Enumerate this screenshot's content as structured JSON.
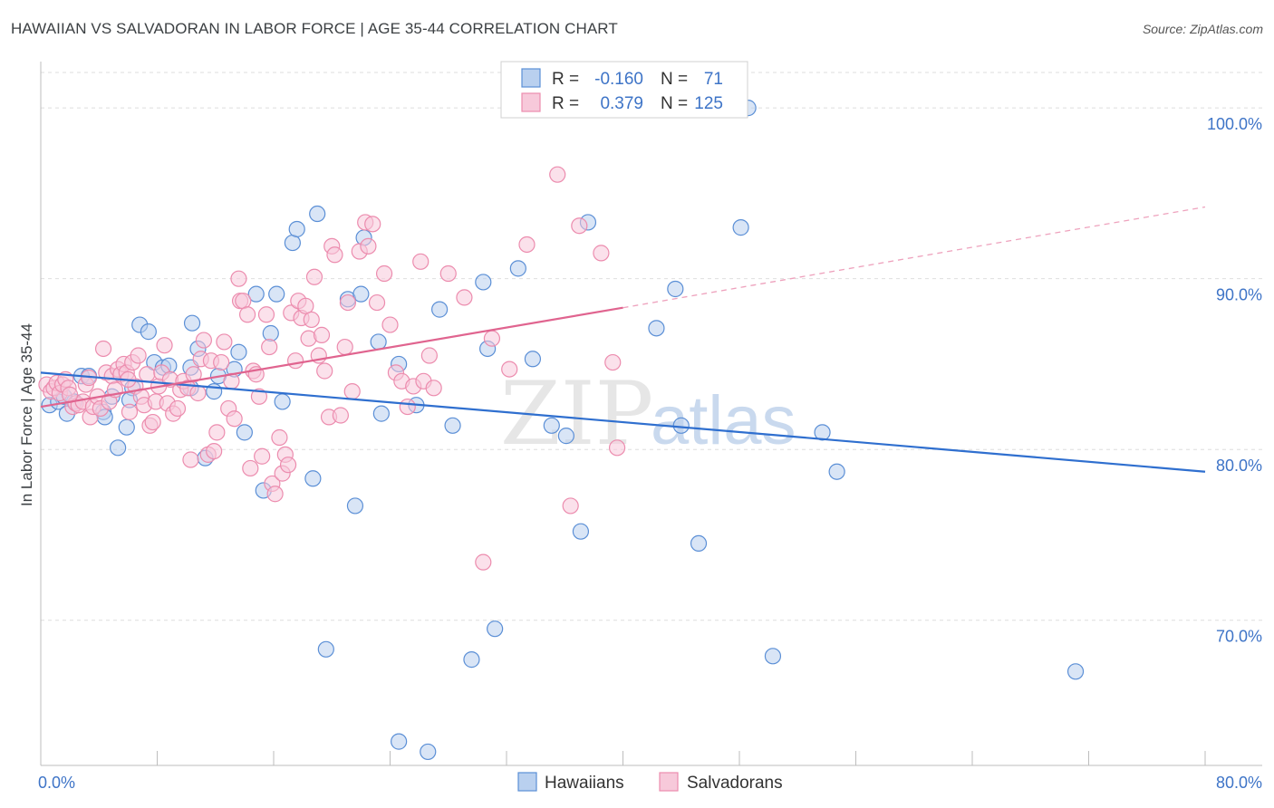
{
  "title": "HAWAIIAN VS SALVADORAN IN LABOR FORCE | AGE 35-44 CORRELATION CHART",
  "source": "Source: ZipAtlas.com",
  "watermark": {
    "part1": "ZIP",
    "part2": "atlas"
  },
  "colors": {
    "blue": "#5b8fd6",
    "blue_fill": "#b9d0ef",
    "blue_line": "#2f6fcf",
    "pink": "#ec8cae",
    "pink_fill": "#f7c9da",
    "pink_line": "#e0648f",
    "axis_text": "#3e74c7"
  },
  "chart_data": {
    "type": "scatter",
    "title": "HAWAIIAN VS SALVADORAN IN LABOR FORCE | AGE 35-44 CORRELATION CHART",
    "ylabel": "In Labor Force | Age 35-44",
    "xlabel": "",
    "xlim": [
      0,
      80
    ],
    "ylim": [
      61.5,
      102.5
    ],
    "x_tick_labels": [
      {
        "value": 0,
        "label": "0.0%"
      },
      {
        "value": 80,
        "label": "80.0%"
      }
    ],
    "y_tick_labels": [
      {
        "value": 70,
        "label": "70.0%"
      },
      {
        "value": 80,
        "label": "80.0%"
      },
      {
        "value": 90,
        "label": "90.0%"
      },
      {
        "value": 100,
        "label": "100.0%"
      }
    ],
    "legend": [
      {
        "series": "Hawaiians",
        "r_label": "R =",
        "r": "-0.160",
        "n_label": "N =",
        "n": "71"
      },
      {
        "series": "Salvadorans",
        "r_label": "R =",
        "r": "0.379",
        "n_label": "N =",
        "n": "125"
      }
    ],
    "series": [
      {
        "name": "Hawaiians",
        "color": "#5b8fd6",
        "trend": {
          "x": [
            0,
            80
          ],
          "y": [
            84.5,
            78.7
          ]
        },
        "points": [
          [
            0.6,
            82.6
          ],
          [
            1.2,
            82.8
          ],
          [
            1.8,
            82.1
          ],
          [
            2.3,
            82.8
          ],
          [
            2.8,
            84.3
          ],
          [
            3.3,
            84.3
          ],
          [
            4.3,
            82.2
          ],
          [
            4.4,
            81.9
          ],
          [
            4.9,
            83.1
          ],
          [
            5.3,
            80.1
          ],
          [
            5.9,
            81.3
          ],
          [
            6.3,
            83.6
          ],
          [
            6.8,
            87.3
          ],
          [
            7.4,
            86.9
          ],
          [
            7.8,
            85.1
          ],
          [
            8.4,
            84.8
          ],
          [
            8.8,
            84.9
          ],
          [
            10.3,
            84.8
          ],
          [
            10.3,
            83.6
          ],
          [
            10.4,
            87.4
          ],
          [
            10.8,
            85.9
          ],
          [
            11.3,
            79.5
          ],
          [
            11.9,
            83.4
          ],
          [
            12.2,
            84.3
          ],
          [
            13.3,
            84.7
          ],
          [
            13.6,
            85.7
          ],
          [
            14.0,
            81.0
          ],
          [
            14.8,
            89.1
          ],
          [
            15.3,
            77.6
          ],
          [
            15.8,
            86.8
          ],
          [
            16.2,
            89.1
          ],
          [
            16.6,
            82.8
          ],
          [
            17.3,
            92.1
          ],
          [
            17.6,
            92.9
          ],
          [
            18.7,
            78.3
          ],
          [
            19.0,
            93.8
          ],
          [
            19.6,
            68.3
          ],
          [
            21.1,
            88.8
          ],
          [
            21.6,
            76.7
          ],
          [
            22.0,
            89.1
          ],
          [
            22.2,
            92.4
          ],
          [
            23.2,
            86.3
          ],
          [
            23.4,
            82.1
          ],
          [
            24.6,
            85.0
          ],
          [
            24.6,
            62.9
          ],
          [
            25.8,
            82.6
          ],
          [
            26.6,
            62.3
          ],
          [
            27.4,
            88.2
          ],
          [
            28.3,
            81.4
          ],
          [
            29.6,
            67.7
          ],
          [
            30.4,
            89.8
          ],
          [
            30.7,
            85.9
          ],
          [
            31.2,
            69.5
          ],
          [
            32.8,
            90.6
          ],
          [
            33.8,
            85.3
          ],
          [
            35.1,
            81.4
          ],
          [
            36.1,
            80.8
          ],
          [
            37.1,
            75.2
          ],
          [
            37.6,
            93.3
          ],
          [
            42.3,
            87.1
          ],
          [
            43.6,
            89.4
          ],
          [
            44.0,
            81.4
          ],
          [
            45.2,
            74.5
          ],
          [
            48.1,
            93.0
          ],
          [
            48.6,
            100.0
          ],
          [
            50.3,
            67.9
          ],
          [
            53.7,
            81.0
          ],
          [
            54.7,
            78.7
          ],
          [
            71.1,
            67.0
          ],
          [
            1.6,
            83.1
          ],
          [
            6.1,
            82.9
          ]
        ]
      },
      {
        "name": "Salvadorans",
        "color": "#ec8cae",
        "trend": {
          "x": [
            0,
            40
          ],
          "y": [
            82.5,
            88.3
          ]
        },
        "trend_dashed": {
          "x": [
            40,
            80
          ],
          "y": [
            88.3,
            94.2
          ]
        },
        "points": [
          [
            0.4,
            83.8
          ],
          [
            0.7,
            83.4
          ],
          [
            0.9,
            83.6
          ],
          [
            1.1,
            83.9
          ],
          [
            1.3,
            83.3
          ],
          [
            1.5,
            83.8
          ],
          [
            1.7,
            84.1
          ],
          [
            1.9,
            83.6
          ],
          [
            2.2,
            82.5
          ],
          [
            2.4,
            82.7
          ],
          [
            2.6,
            82.6
          ],
          [
            2.9,
            82.8
          ],
          [
            3.1,
            83.8
          ],
          [
            3.3,
            84.2
          ],
          [
            3.4,
            81.9
          ],
          [
            3.6,
            82.5
          ],
          [
            3.9,
            83.1
          ],
          [
            4.1,
            82.4
          ],
          [
            4.3,
            85.9
          ],
          [
            4.5,
            84.5
          ],
          [
            4.7,
            82.8
          ],
          [
            4.9,
            84.3
          ],
          [
            5.1,
            83.5
          ],
          [
            5.3,
            84.7
          ],
          [
            5.5,
            84.4
          ],
          [
            5.7,
            85.0
          ],
          [
            5.9,
            84.5
          ],
          [
            6.1,
            82.2
          ],
          [
            6.3,
            85.1
          ],
          [
            6.5,
            83.7
          ],
          [
            6.7,
            85.5
          ],
          [
            6.9,
            83.1
          ],
          [
            7.1,
            82.6
          ],
          [
            7.3,
            84.4
          ],
          [
            7.5,
            81.4
          ],
          [
            7.7,
            81.6
          ],
          [
            7.9,
            82.8
          ],
          [
            8.1,
            83.7
          ],
          [
            8.3,
            84.5
          ],
          [
            8.5,
            86.1
          ],
          [
            8.7,
            82.7
          ],
          [
            8.9,
            84.1
          ],
          [
            9.1,
            82.1
          ],
          [
            9.4,
            82.4
          ],
          [
            9.6,
            83.5
          ],
          [
            9.8,
            84.0
          ],
          [
            10.1,
            83.6
          ],
          [
            10.3,
            79.4
          ],
          [
            10.5,
            84.4
          ],
          [
            10.8,
            83.3
          ],
          [
            11.0,
            85.3
          ],
          [
            11.2,
            86.4
          ],
          [
            11.5,
            79.7
          ],
          [
            11.7,
            85.2
          ],
          [
            11.9,
            79.9
          ],
          [
            12.1,
            81.0
          ],
          [
            12.4,
            85.1
          ],
          [
            12.6,
            86.3
          ],
          [
            12.9,
            82.4
          ],
          [
            13.1,
            84.0
          ],
          [
            13.3,
            81.8
          ],
          [
            13.6,
            90.0
          ],
          [
            13.7,
            88.7
          ],
          [
            13.9,
            88.7
          ],
          [
            14.2,
            87.9
          ],
          [
            14.4,
            78.9
          ],
          [
            14.6,
            84.6
          ],
          [
            14.8,
            84.4
          ],
          [
            15.0,
            83.1
          ],
          [
            15.2,
            79.6
          ],
          [
            15.5,
            87.9
          ],
          [
            15.7,
            86.0
          ],
          [
            15.9,
            78.0
          ],
          [
            16.1,
            77.4
          ],
          [
            16.4,
            80.7
          ],
          [
            16.6,
            78.6
          ],
          [
            16.8,
            79.7
          ],
          [
            17.0,
            79.1
          ],
          [
            17.2,
            88.0
          ],
          [
            17.5,
            85.2
          ],
          [
            17.7,
            88.7
          ],
          [
            17.9,
            87.7
          ],
          [
            18.2,
            88.4
          ],
          [
            18.4,
            86.5
          ],
          [
            18.6,
            87.6
          ],
          [
            18.8,
            90.1
          ],
          [
            19.1,
            85.5
          ],
          [
            19.3,
            86.7
          ],
          [
            19.5,
            84.6
          ],
          [
            19.8,
            81.9
          ],
          [
            20.0,
            91.9
          ],
          [
            20.2,
            91.4
          ],
          [
            20.6,
            82.0
          ],
          [
            20.9,
            86.0
          ],
          [
            21.1,
            88.6
          ],
          [
            21.4,
            83.4
          ],
          [
            21.9,
            91.6
          ],
          [
            22.3,
            93.3
          ],
          [
            22.5,
            91.9
          ],
          [
            22.8,
            93.2
          ],
          [
            23.1,
            88.6
          ],
          [
            23.6,
            90.3
          ],
          [
            24.0,
            87.3
          ],
          [
            24.4,
            84.5
          ],
          [
            24.8,
            84.0
          ],
          [
            25.2,
            82.5
          ],
          [
            25.6,
            83.7
          ],
          [
            26.1,
            91.0
          ],
          [
            26.3,
            84.0
          ],
          [
            26.7,
            85.5
          ],
          [
            27.0,
            83.6
          ],
          [
            28.0,
            90.3
          ],
          [
            29.1,
            88.9
          ],
          [
            30.4,
            73.4
          ],
          [
            31.0,
            86.5
          ],
          [
            32.2,
            84.7
          ],
          [
            33.4,
            92.0
          ],
          [
            35.5,
            96.1
          ],
          [
            36.4,
            76.7
          ],
          [
            37.0,
            93.1
          ],
          [
            38.5,
            91.5
          ],
          [
            39.3,
            85.1
          ],
          [
            39.6,
            80.1
          ],
          [
            2.0,
            83.2
          ],
          [
            6.0,
            84.1
          ]
        ]
      }
    ]
  }
}
